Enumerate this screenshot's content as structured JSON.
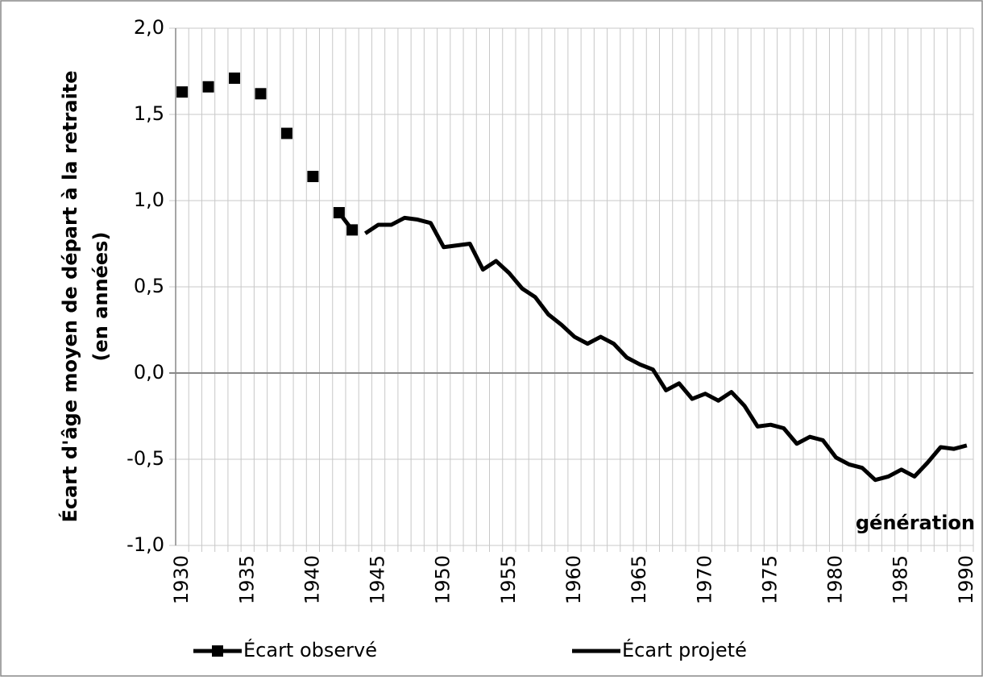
{
  "chart_data": {
    "type": "line",
    "y_label_lines": [
      "Écart d'âge moyen de départ à la retraite",
      "(en années)"
    ],
    "annotation": "génération",
    "x": [
      1930,
      1931,
      1932,
      1933,
      1934,
      1935,
      1936,
      1937,
      1938,
      1939,
      1940,
      1941,
      1942,
      1943,
      1944,
      1945,
      1946,
      1947,
      1948,
      1949,
      1950,
      1951,
      1952,
      1953,
      1954,
      1955,
      1956,
      1957,
      1958,
      1959,
      1960,
      1961,
      1962,
      1963,
      1964,
      1965,
      1966,
      1967,
      1968,
      1969,
      1970,
      1971,
      1972,
      1973,
      1974,
      1975,
      1976,
      1977,
      1978,
      1979,
      1980,
      1981,
      1982,
      1983,
      1984,
      1985,
      1986,
      1987,
      1988,
      1989,
      1990
    ],
    "series": [
      {
        "name": "Écart observé",
        "color": "#000000",
        "marker": "square",
        "values": [
          1.63,
          null,
          1.66,
          null,
          1.71,
          null,
          1.62,
          null,
          1.39,
          null,
          1.14,
          null,
          0.93,
          0.83,
          null,
          null,
          null,
          null,
          null,
          null,
          null,
          null,
          null,
          null,
          null,
          null,
          null,
          null,
          null,
          null,
          null,
          null,
          null,
          null,
          null,
          null,
          null,
          null,
          null,
          null,
          null,
          null,
          null,
          null,
          null,
          null,
          null,
          null,
          null,
          null,
          null,
          null,
          null,
          null,
          null,
          null,
          null,
          null,
          null,
          null,
          null
        ]
      },
      {
        "name": "Écart projeté",
        "color": "#000000",
        "values": [
          null,
          null,
          null,
          null,
          null,
          null,
          null,
          null,
          null,
          null,
          null,
          null,
          null,
          null,
          0.81,
          0.86,
          0.86,
          0.9,
          0.89,
          0.87,
          0.73,
          0.74,
          0.75,
          0.6,
          0.65,
          0.58,
          0.49,
          0.44,
          0.34,
          0.28,
          0.21,
          0.17,
          0.21,
          0.17,
          0.09,
          0.05,
          0.02,
          -0.1,
          -0.06,
          -0.15,
          -0.12,
          -0.16,
          -0.11,
          -0.19,
          -0.31,
          -0.3,
          -0.32,
          -0.41,
          -0.37,
          -0.39,
          -0.49,
          -0.53,
          -0.55,
          -0.62,
          -0.6,
          -0.56,
          -0.6,
          -0.52,
          -0.43,
          -0.44,
          -0.42
        ]
      }
    ],
    "xlim": [
      1929.5,
      1990.5
    ],
    "xticks": [
      1930,
      1935,
      1940,
      1945,
      1950,
      1955,
      1960,
      1965,
      1970,
      1975,
      1980,
      1985,
      1990
    ],
    "ylim": [
      -1.0,
      2.0
    ],
    "yticks": [
      {
        "value": 2.0,
        "label": "2,0"
      },
      {
        "value": 1.5,
        "label": "1,5"
      },
      {
        "value": 1.0,
        "label": "1,0"
      },
      {
        "value": 0.5,
        "label": "0,5"
      },
      {
        "value": 0.0,
        "label": "0,0"
      },
      {
        "value": -0.5,
        "label": "-0,5"
      },
      {
        "value": -1.0,
        "label": "-1,0"
      }
    ],
    "grid": true,
    "legend": "bottom"
  }
}
